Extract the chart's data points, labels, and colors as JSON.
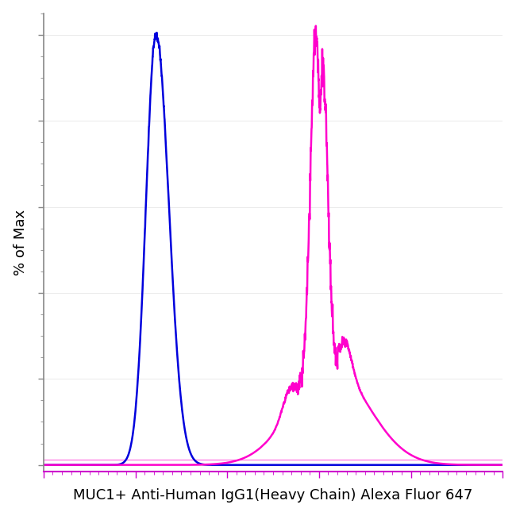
{
  "title": "",
  "xlabel": "MUC1+ Anti-Human IgG1(Heavy Chain) Alexa Fluor 647",
  "ylabel": "% of Max",
  "xlabel_fontsize": 13,
  "ylabel_fontsize": 13,
  "background_color": "#ffffff",
  "plot_bg_color": "#ffffff",
  "blue_color": "#0000DD",
  "pink_color": "#FF00CC",
  "axis_tick_color": "#CC00CC",
  "xlim": [
    0,
    1000
  ],
  "ylim": [
    0,
    105
  ],
  "grid_color": "#dddddd"
}
